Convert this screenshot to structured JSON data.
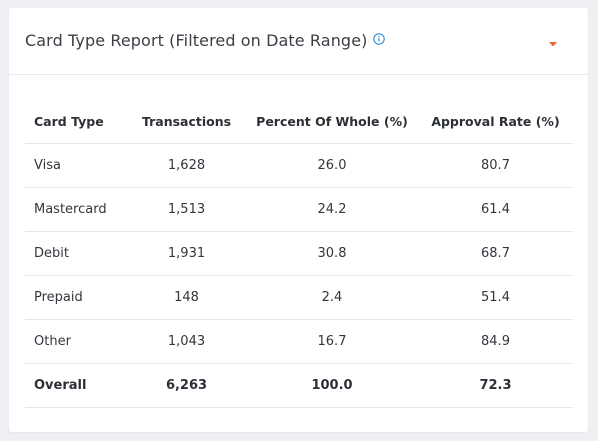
{
  "report": {
    "title": "Card Type Report (Filtered on Date Range)",
    "info_icon": "info-icon",
    "dropdown_icon": "caret-down-icon",
    "accent_color": "#e8672a",
    "info_color": "#2b8ad8",
    "columns": [
      "Card Type",
      "Transactions",
      "Percent Of Whole (%)",
      "Approval Rate (%)"
    ],
    "rows": [
      [
        "Visa",
        "1,628",
        "26.0",
        "80.7"
      ],
      [
        "Mastercard",
        "1,513",
        "24.2",
        "61.4"
      ],
      [
        "Debit",
        "1,931",
        "30.8",
        "68.7"
      ],
      [
        "Prepaid",
        "148",
        "2.4",
        "51.4"
      ],
      [
        "Other",
        "1,043",
        "16.7",
        "84.9"
      ]
    ],
    "overall": [
      "Overall",
      "6,263",
      "100.0",
      "72.3"
    ]
  }
}
